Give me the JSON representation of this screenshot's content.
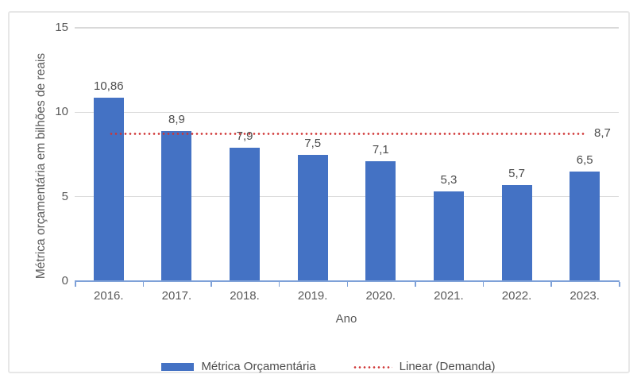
{
  "figure": {
    "background": "#ffffff",
    "border_color": "#e7e7e7"
  },
  "chart_data": {
    "type": "bar",
    "title": "",
    "categories": [
      "2016.",
      "2017.",
      "2018.",
      "2019.",
      "2020.",
      "2021.",
      "2022.",
      "2023."
    ],
    "series": [
      {
        "name": "Métrica Orçamentária",
        "values": [
          10.86,
          8.9,
          7.9,
          7.5,
          7.1,
          5.3,
          5.7,
          6.5
        ],
        "value_labels": [
          "10,86",
          "8,9",
          "7,9",
          "7,5",
          "7,1",
          "5,3",
          "5,7",
          "6,5"
        ],
        "color": "#4472c4"
      }
    ],
    "trendline": {
      "name": "Linear (Demanda)",
      "value": 8.7,
      "label": "8,7",
      "color": "#cf3434",
      "style": "dotted"
    },
    "xlabel": "Ano",
    "ylabel": "Métrica orçamentária em bilhões de reais",
    "ylim": [
      0,
      15
    ],
    "yticks": [
      0,
      5,
      10,
      15
    ],
    "ytick_labels": [
      "0",
      "5",
      "10",
      "15"
    ],
    "grid": true,
    "legend_position": "bottom",
    "legend": [
      {
        "label": "Métrica Orçamentária",
        "swatch": "bar",
        "color": "#4472c4"
      },
      {
        "label": "Linear (Demanda)",
        "swatch": "dotted-line",
        "color": "#cf3434"
      }
    ]
  }
}
